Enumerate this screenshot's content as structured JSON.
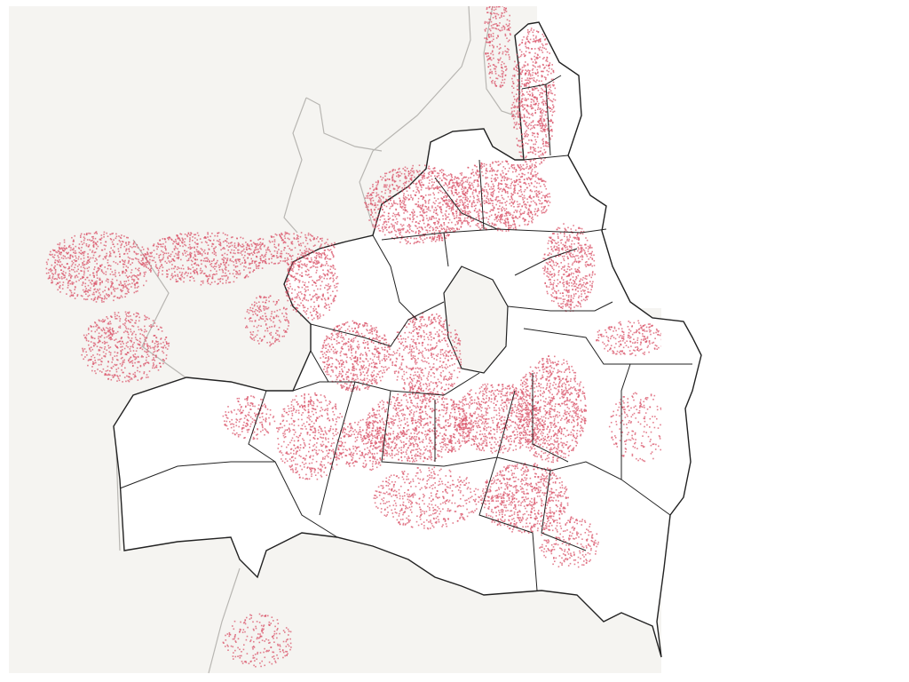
{
  "map": {
    "type": "district boundary map with building footprints",
    "colors": {
      "background": "#ffffff",
      "land": "#f5f4f1",
      "city_area": "#ffffff",
      "buildings": "#d9546a",
      "district_boundary": "#222222",
      "admin_boundary": "#b8b6b2"
    },
    "layers": [
      "land",
      "admin-boundaries",
      "city-districts",
      "buildings"
    ]
  }
}
